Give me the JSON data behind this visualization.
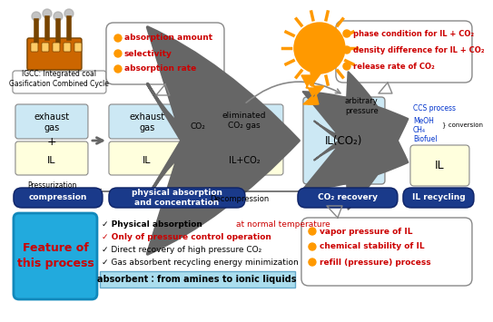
{
  "bg": "#ffffff",
  "lb": "#cce8f4",
  "ly": "#ffffdd",
  "db": "#1a3a8a",
  "orange": "#ff9900",
  "red": "#cc0000",
  "blue_text": "#0033cc",
  "gray": "#888888",
  "igcc_text": "IGCC: Integrated coal\nGasification Combined Cycle",
  "bubble1_lines": [
    "absorption amount",
    "selectivity",
    "absorption rate"
  ],
  "bubble2_lines": [
    "phase condition for IL + CO₂",
    "density difference for IL + CO₂",
    "release rate of CO₂"
  ],
  "bubble3_lines": [
    "vapor pressure of IL",
    "chemical stability of IL",
    "refill (pressure) process"
  ],
  "arb_pressure": "arbitrary\npressure",
  "decompression": "Decompression",
  "ccs_lines": [
    "CCS process",
    "MeOH",
    "CH₄",
    "Biofuel"
  ],
  "conversion": "} conversion",
  "pill_labels": [
    "compression",
    "physical absorption\nand concentration",
    "CO₂ recovery",
    "IL recycling"
  ],
  "feature_text": "Feature of\nthis process",
  "bullets_black": [
    "✓ Physical absorption ",
    "✓ Direct recovery of high pressure CO₂",
    "✓ Gas absorbent recycling energy minimization"
  ],
  "bullet_red_suffix": "at normal temperature",
  "bullet_red_full": "✓ Only of pressure control operation",
  "absorbent": "absorbent：from amines to ionic liquids"
}
